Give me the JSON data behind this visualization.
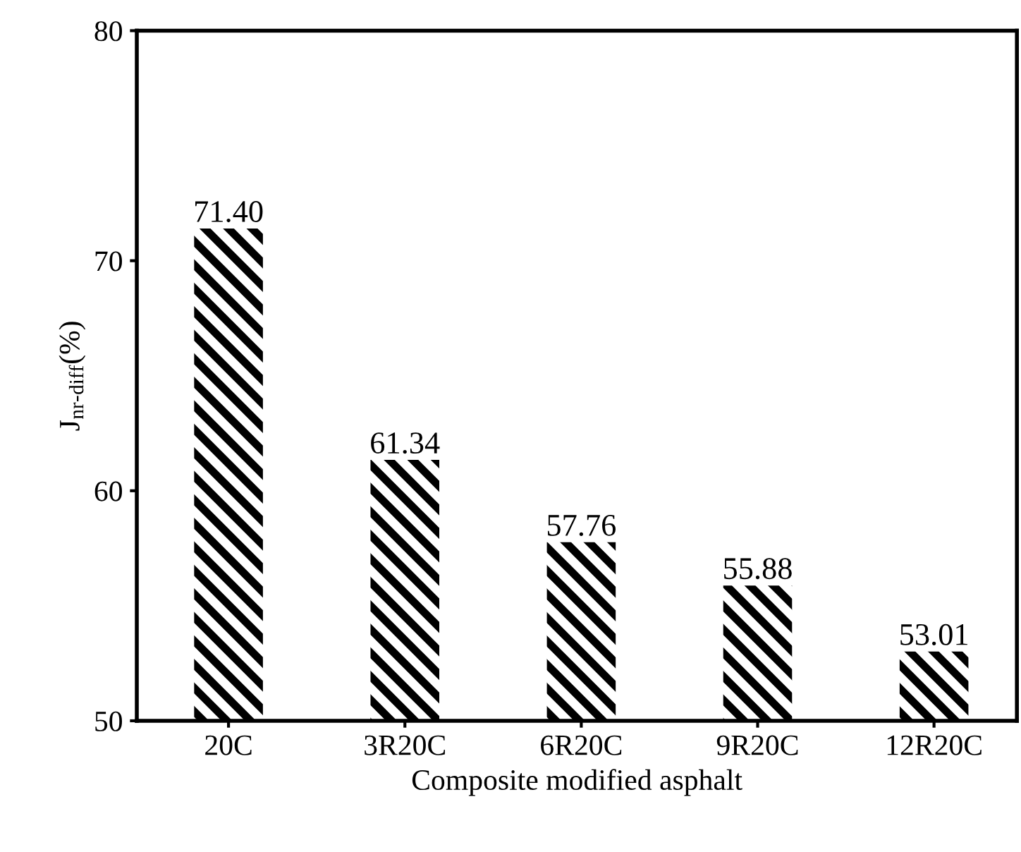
{
  "chart_data": {
    "type": "bar",
    "xlabel": "Composite modified asphalt",
    "ylabel": "J$_{nr-diff}$(%)",
    "categories": [
      "20C",
      "3R20C",
      "6R20C",
      "9R20C",
      "12R20C"
    ],
    "values": [
      71.4,
      61.34,
      57.76,
      55.88,
      53.01
    ],
    "value_labels": [
      "71.40",
      "61.34",
      "57.76",
      "55.88",
      "53.01"
    ],
    "color": "#000000",
    "ylim": [
      50,
      80
    ],
    "yticks": [
      50,
      60,
      70,
      80
    ],
    "grid": false,
    "legend": false
  }
}
